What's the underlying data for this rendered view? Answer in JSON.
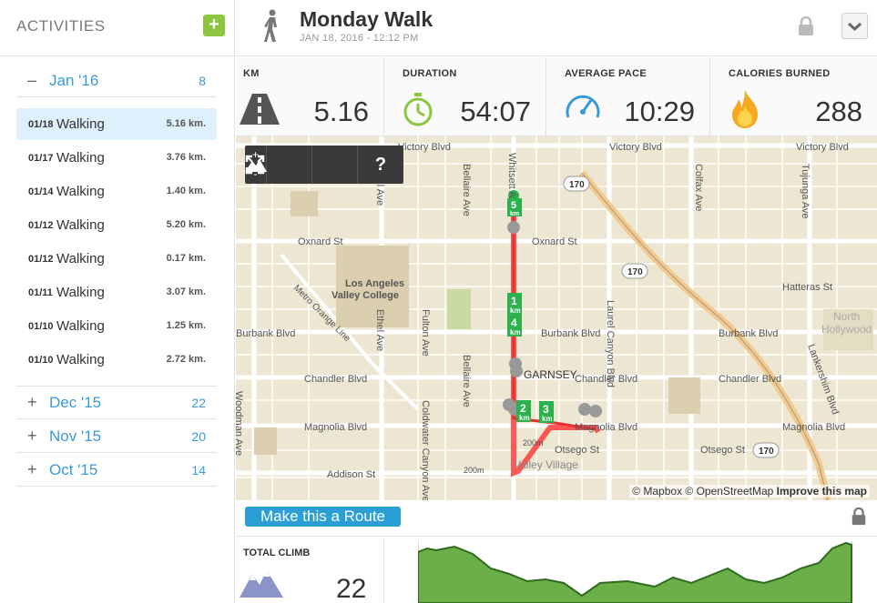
{
  "sidebar": {
    "title": "ACTIVITIES",
    "add_label": "+",
    "months": [
      {
        "toggle": "–",
        "label": "Jan '16",
        "count": "8",
        "expanded": true
      },
      {
        "toggle": "+",
        "label": "Dec '15",
        "count": "22",
        "expanded": false
      },
      {
        "toggle": "+",
        "label": "Nov '15",
        "count": "20",
        "expanded": false
      },
      {
        "toggle": "+",
        "label": "Oct '15",
        "count": "14",
        "expanded": false
      }
    ],
    "activities": [
      {
        "date": "01/18",
        "type": "Walking",
        "distance": "5.16 km.",
        "selected": true
      },
      {
        "date": "01/17",
        "type": "Walking",
        "distance": "3.76 km."
      },
      {
        "date": "01/14",
        "type": "Walking",
        "distance": "1.40 km."
      },
      {
        "date": "01/12",
        "type": "Walking",
        "distance": "5.20 km."
      },
      {
        "date": "01/12",
        "type": "Walking",
        "distance": "0.17 km."
      },
      {
        "date": "01/11",
        "type": "Walking",
        "distance": "3.07 km."
      },
      {
        "date": "01/10",
        "type": "Walking",
        "distance": "1.25 km."
      },
      {
        "date": "01/10",
        "type": "Walking",
        "distance": "2.72 km."
      }
    ]
  },
  "header": {
    "title": "Monday Walk",
    "subtitle": "JAN 18, 2016  -  12:12 PM",
    "walker_icon": "walker-icon",
    "lock_icon": "lock-icon"
  },
  "stats": [
    {
      "label": "KM",
      "value": "5.16",
      "icon": "road-icon"
    },
    {
      "label": "DURATION",
      "value": "54:07",
      "icon": "stopwatch-icon"
    },
    {
      "label": "AVERAGE PACE",
      "value": "10:29",
      "icon": "speedometer-icon"
    },
    {
      "label": "CALORIES BURNED",
      "value": "288",
      "icon": "flame-icon"
    }
  ],
  "map": {
    "controls": {
      "zoom_in": "+",
      "zoom_out": "-",
      "help": "?"
    },
    "streets": {
      "victory": "Victory Blvd",
      "oxnard": "Oxnard St",
      "burbank": "Burbank Blvd",
      "chandler": "Chandler Blvd",
      "magnolia": "Magnolia Blvd",
      "addison": "Addison St",
      "otsego": "Otsego St",
      "hatteras": "Hatteras St",
      "whitsett": "Whitsett Ave",
      "bellaire": "Bellaire Ave",
      "ethel": "Ethel Ave",
      "coldwater": "Coldwater Canyon Ave",
      "laurel": "Laurel Canyon Blvd",
      "colfax": "Colfax Ave",
      "tujunga": "Tujunga Ave",
      "lankershim": "Lankershim Blvd",
      "woodman": "Woodman Ave",
      "metro": "Metro Orange Line",
      "fulton": "Fulton Ave"
    },
    "places": {
      "lavc1": "Los Angeles",
      "lavc2": "Valley College",
      "garnsey": "GARNSEY",
      "valley_village": "Valley Village",
      "nh1": "North",
      "nh2": "Hollywood",
      "route": "170",
      "m200": "200m"
    },
    "km_markers": [
      "1",
      "2",
      "3",
      "4",
      "5"
    ],
    "km_unit": "km",
    "attribution_prefix": "© Mapbox © OpenStreetMap",
    "attribution_link": "Improve this map"
  },
  "route_button": "Make this a Route",
  "climb": {
    "label": "TOTAL CLIMB",
    "value": "22"
  }
}
